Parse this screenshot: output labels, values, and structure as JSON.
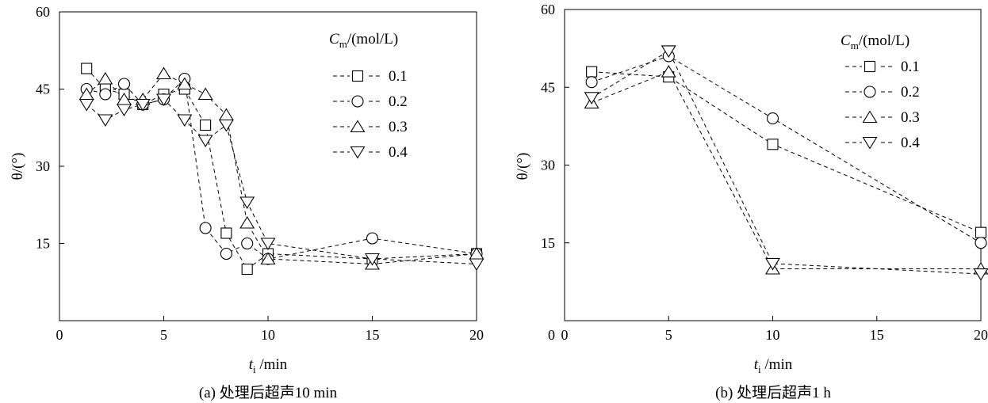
{
  "chart_data": [
    {
      "type": "line",
      "caption": "(a) 处理后超声10 min",
      "xlabel_var": "t",
      "xlabel_sub": "i",
      "xlabel_unit": " /min",
      "ylabel": "θ/(°)",
      "xlim": [
        0,
        20
      ],
      "ylim": [
        0,
        60
      ],
      "xticks": [
        0,
        5,
        10,
        15,
        20
      ],
      "yticks": [
        15,
        30,
        45,
        60
      ],
      "y0_label": "",
      "legend_title_var": "C",
      "legend_title_sub": "m",
      "legend_title_unit": "/(mol/L)",
      "legend_position": "top-right",
      "series": [
        {
          "name": "0.1",
          "marker": "square",
          "x": [
            1.3,
            2.2,
            3.1,
            4,
            5,
            6,
            7,
            8,
            9,
            10,
            15,
            20
          ],
          "y": [
            49,
            45,
            44,
            42,
            44,
            45,
            38,
            17,
            10,
            13,
            12,
            13
          ]
        },
        {
          "name": "0.2",
          "marker": "circle",
          "x": [
            1.3,
            2.2,
            3.1,
            4,
            5,
            6,
            7,
            8,
            9,
            10,
            15,
            20
          ],
          "y": [
            45,
            44,
            46,
            42,
            43,
            47,
            18,
            13,
            15,
            12,
            16,
            13
          ]
        },
        {
          "name": "0.3",
          "marker": "triangle-up",
          "x": [
            1.3,
            2.2,
            3.1,
            4,
            5,
            6,
            7,
            8,
            9,
            10,
            15,
            20
          ],
          "y": [
            44,
            47,
            43,
            43,
            48,
            46,
            44,
            40,
            19,
            12,
            11,
            13
          ]
        },
        {
          "name": "0.4",
          "marker": "triangle-down",
          "x": [
            1.3,
            2.2,
            3.1,
            4,
            5,
            6,
            7,
            8,
            9,
            10,
            15,
            20
          ],
          "y": [
            42,
            39,
            41,
            42,
            43,
            39,
            35,
            38,
            23,
            15,
            12,
            11
          ]
        }
      ]
    },
    {
      "type": "line",
      "caption": "(b) 处理后超声1 h",
      "xlabel_var": "t",
      "xlabel_sub": "i",
      "xlabel_unit": " /min",
      "ylabel": "θ/(°)",
      "xlim": [
        0,
        20
      ],
      "ylim": [
        0,
        60
      ],
      "xticks": [
        0,
        5,
        10,
        15,
        20
      ],
      "yticks": [
        15,
        30,
        45,
        60
      ],
      "y0_label": "0",
      "legend_title_var": "C",
      "legend_title_sub": "m",
      "legend_title_unit": "/(mol/L)",
      "legend_position": "top-right",
      "series": [
        {
          "name": "0.1",
          "marker": "square",
          "x": [
            1.3,
            5,
            10,
            20
          ],
          "y": [
            48,
            47,
            34,
            17
          ]
        },
        {
          "name": "0.2",
          "marker": "circle",
          "x": [
            1.3,
            5,
            10,
            20
          ],
          "y": [
            46,
            51,
            39,
            15
          ]
        },
        {
          "name": "0.3",
          "marker": "triangle-up",
          "x": [
            1.3,
            5,
            10,
            20
          ],
          "y": [
            42,
            48,
            10,
            10
          ]
        },
        {
          "name": "0.4",
          "marker": "triangle-down",
          "x": [
            1.3,
            5,
            10,
            20
          ],
          "y": [
            43,
            52,
            11,
            9
          ]
        }
      ]
    }
  ]
}
